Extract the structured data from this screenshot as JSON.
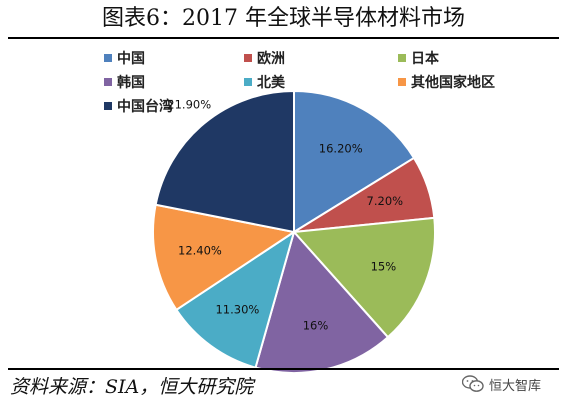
{
  "title": "图表6：2017 年全球半导体材料市场",
  "source": "资料来源：SIA，恒大研究院",
  "watermark": "恒大智库",
  "chart_data": {
    "type": "pie",
    "title": "图表6：2017 年全球半导体材料市场",
    "start_angle_deg": 0,
    "direction": "clockwise",
    "legend_position": "top",
    "slices": [
      {
        "name": "中国",
        "value": 16.2,
        "label": "16.20%",
        "color": "#4F81BD"
      },
      {
        "name": "欧洲",
        "value": 7.2,
        "label": "7.20%",
        "color": "#C0504D"
      },
      {
        "name": "日本",
        "value": 15.0,
        "label": "15%",
        "color": "#9BBB59"
      },
      {
        "name": "韩国",
        "value": 16.0,
        "label": "16%",
        "color": "#8064A2"
      },
      {
        "name": "北美",
        "value": 11.3,
        "label": "11.30%",
        "color": "#4BACC6"
      },
      {
        "name": "其他国家地区",
        "value": 12.4,
        "label": "12.40%",
        "color": "#F79646"
      },
      {
        "name": "中国台湾",
        "value": 21.9,
        "label": "21.90%",
        "color": "#1F3864"
      }
    ]
  }
}
